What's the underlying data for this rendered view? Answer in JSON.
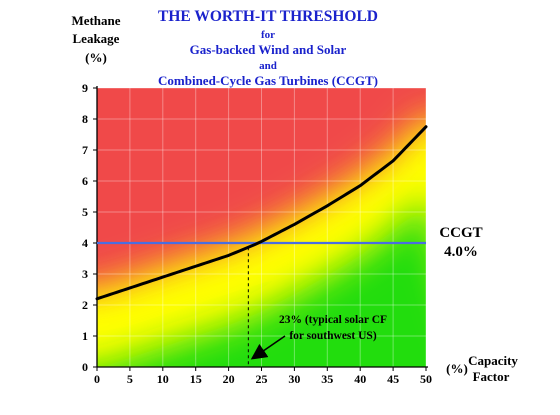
{
  "chart_data": {
    "type": "line",
    "title": [
      "THE WORTH-IT THRESHOLD",
      "for",
      "Gas-backed Wind and Solar",
      "and",
      "Combined-Cycle Gas Turbines (CCGT)"
    ],
    "ylabel": [
      "Methane",
      "Leakage",
      "(%)"
    ],
    "xlabel_unit": "(%)",
    "xlabel": [
      "Capacity",
      "Factor"
    ],
    "xlim": [
      0,
      50
    ],
    "ylim": [
      0,
      9
    ],
    "xticks": [
      0,
      5,
      10,
      15,
      20,
      25,
      30,
      35,
      40,
      45,
      50
    ],
    "yticks": [
      0,
      1,
      2,
      3,
      4,
      5,
      6,
      7,
      8,
      9
    ],
    "grid": true,
    "background": "gradient red (above threshold) to yellow to green (below threshold)",
    "series": [
      {
        "x": [
          0,
          5,
          10,
          15,
          20,
          24,
          25,
          30,
          35,
          40,
          45,
          50
        ],
        "y": [
          2.2,
          2.55,
          2.9,
          3.25,
          3.6,
          3.95,
          4.05,
          4.6,
          5.2,
          5.85,
          6.65,
          7.75
        ],
        "color": "#000000"
      }
    ],
    "threshold": {
      "y": 4.0,
      "label": [
        "CCGT",
        "4.0%"
      ],
      "color": "#4a6ee0"
    },
    "annotation": {
      "x": 23,
      "lines": [
        "23% (typical solar CF",
        "for southwest US)"
      ]
    },
    "colors": {
      "red": "#f04a4a",
      "yellow": "#ffff00",
      "green": "#22dd11",
      "title": "#1a22cc"
    }
  }
}
